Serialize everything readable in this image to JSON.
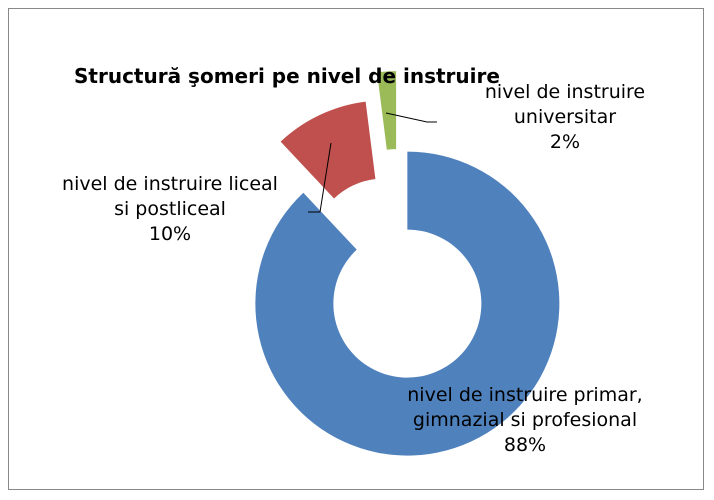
{
  "chart_data": {
    "type": "doughnut",
    "title": "Structură şomeri pe nivel de instruire",
    "categories": [
      "nivel de instruire primar, gimnazial si profesional",
      "nivel de instruire liceal si postliceal",
      "nivel de instruire universitar"
    ],
    "values": [
      88,
      10,
      2
    ],
    "value_labels": [
      "88%",
      "10%",
      "2%"
    ],
    "colors": [
      "#4f81bd",
      "#c0504d",
      "#9bbb59"
    ]
  }
}
